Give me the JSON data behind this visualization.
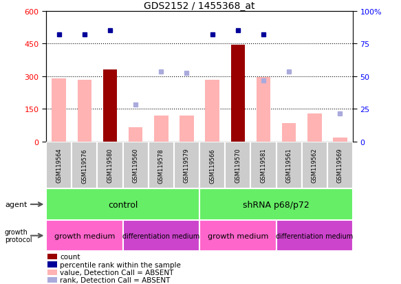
{
  "title": "GDS2152 / 1455368_at",
  "samples": [
    "GSM119564",
    "GSM119576",
    "GSM119580",
    "GSM119560",
    "GSM119578",
    "GSM119579",
    "GSM119566",
    "GSM119570",
    "GSM119581",
    "GSM119561",
    "GSM119562",
    "GSM119569"
  ],
  "left_ylim": [
    0,
    600
  ],
  "right_ylim": [
    0,
    100
  ],
  "left_yticks": [
    0,
    150,
    300,
    450,
    600
  ],
  "right_yticks": [
    0,
    25,
    50,
    75,
    100
  ],
  "right_yticklabels": [
    "0",
    "25",
    "50",
    "75",
    "100%"
  ],
  "bar_values": [
    290,
    285,
    330,
    65,
    120,
    120,
    285,
    445,
    295,
    85,
    130,
    20
  ],
  "bar_is_dark": [
    false,
    false,
    true,
    false,
    false,
    false,
    false,
    true,
    false,
    false,
    false,
    false
  ],
  "percentile_left_values": [
    490,
    490,
    510,
    null,
    null,
    null,
    490,
    510,
    490,
    null,
    null,
    null
  ],
  "rank_left_values": [
    null,
    null,
    null,
    170,
    320,
    315,
    null,
    null,
    280,
    320,
    null,
    130
  ],
  "agent_groups": [
    {
      "label": "control",
      "start": 0,
      "end": 6
    },
    {
      "label": "shRNA p68/p72",
      "start": 6,
      "end": 12
    }
  ],
  "growth_groups": [
    {
      "label": "growth medium",
      "start": 0,
      "end": 3,
      "is_growth": true
    },
    {
      "label": "differentiation medium",
      "start": 3,
      "end": 6,
      "is_growth": false
    },
    {
      "label": "growth medium",
      "start": 6,
      "end": 9,
      "is_growth": true
    },
    {
      "label": "differentiation medium",
      "start": 9,
      "end": 12,
      "is_growth": false
    }
  ],
  "bar_color_dark": "#990000",
  "bar_color_light": "#ffb3b3",
  "percentile_color": "#000099",
  "rank_color": "#aaaadd",
  "agent_color": "#66ee66",
  "growth_color": "#ff66cc",
  "diff_color": "#cc44cc"
}
